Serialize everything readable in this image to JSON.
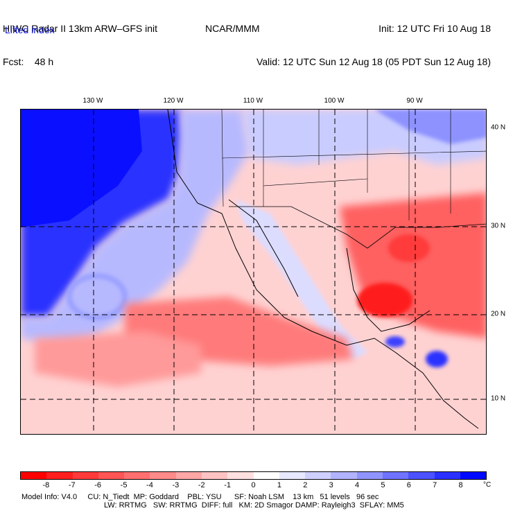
{
  "header": {
    "left_line1": "HIWC Radar II 13km ARW–GFS init",
    "left_line2": "Fcst:    48 h",
    "mid_line1": "NCAR/MMM",
    "right_line1": "Init: 12 UTC Fri 10 Aug 18",
    "right_line2": "Valid: 12 UTC Sun 12 Aug 18 (05 PDT Sun 12 Aug 18)",
    "field_name": "Lifted index"
  },
  "map": {
    "lon_labels": [
      "130 W",
      "120 W",
      "110 W",
      "100 W",
      "90 W"
    ],
    "lat_labels": [
      "40 N",
      "30 N",
      "20 N",
      "10 N"
    ]
  },
  "colorbar": {
    "ticks": [
      "-8",
      "-7",
      "-6",
      "-5",
      "-4",
      "-3",
      "-2",
      "-1",
      "0",
      "1",
      "2",
      "3",
      "4",
      "5",
      "6",
      "7",
      "8"
    ],
    "unit": "°C",
    "colors": [
      "#ff0000",
      "#ff1f1f",
      "#ff3a3a",
      "#ff5555",
      "#ff6f6f",
      "#ff8a8a",
      "#ffa6a6",
      "#ffc3c3",
      "#ffe0e0",
      "#ffffff",
      "#e8e8ff",
      "#cfd0ff",
      "#b1b3ff",
      "#9094ff",
      "#6f73ff",
      "#4d52ff",
      "#2a30ff",
      "#0008ff"
    ]
  },
  "footer": {
    "line1": "Model Info: V4.0     CU: N_Tiedt  MP: Goddard    PBL: YSU      SF: Noah LSM    13 km   51 levels   96 sec",
    "line2": "LW: RRTMG   SW: RRTMG  DIFF: full   KM: 2D Smagor DAMP: Rayleigh3  SFLAY: MM5"
  }
}
